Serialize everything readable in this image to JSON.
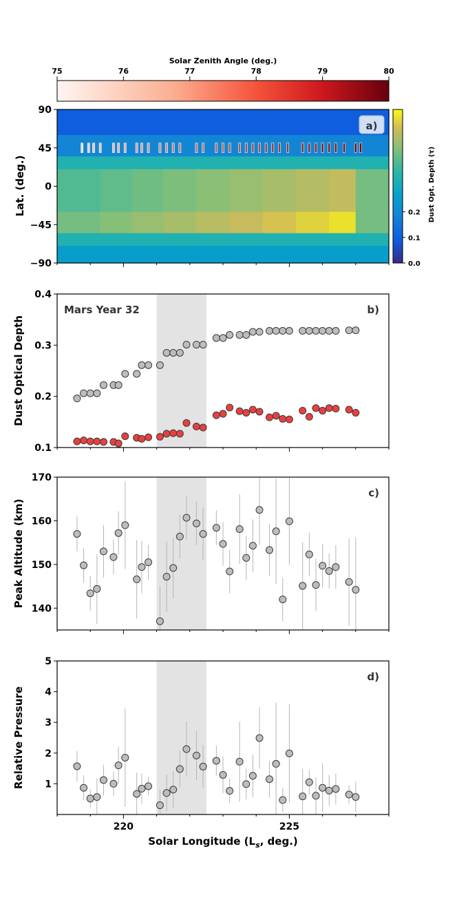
{
  "chart_data": [
    {
      "type": "heatmap",
      "panel_label": "a)",
      "ylabel": "Lat. (deg.)",
      "xlim": [
        218,
        228
      ],
      "ylim": [
        -90,
        90
      ],
      "yticks": [
        "90",
        "45",
        "0",
        "−45",
        "−90"
      ],
      "ytick_values": [
        90,
        45,
        0,
        -45,
        -90
      ],
      "colorbar": {
        "label": "Dust Opt. Depth (τ)",
        "ticks": [
          "0.0",
          "0.1",
          "0.2"
        ],
        "tick_values": [
          0.0,
          0.1,
          0.2
        ],
        "range": [
          0,
          0.6
        ]
      },
      "szaColorbar": {
        "label": "Solar Zenith Angle (deg.)",
        "ticks": [
          "75",
          "76",
          "77",
          "78",
          "79",
          "80"
        ],
        "tick_values": [
          75,
          76,
          77,
          78,
          79,
          80
        ]
      },
      "markerLatitude": 45,
      "markers": [
        {
          "ls": 218.75,
          "sza": 75.6
        },
        {
          "ls": 218.95,
          "sza": 75.8
        },
        {
          "ls": 219.1,
          "sza": 75.9
        },
        {
          "ls": 219.3,
          "sza": 76.0
        },
        {
          "ls": 219.7,
          "sza": 76.2
        },
        {
          "ls": 219.85,
          "sza": 76.3
        },
        {
          "ls": 220.05,
          "sza": 76.4
        },
        {
          "ls": 220.4,
          "sza": 76.6
        },
        {
          "ls": 220.55,
          "sza": 76.7
        },
        {
          "ls": 220.75,
          "sza": 76.8
        },
        {
          "ls": 221.1,
          "sza": 77.0
        },
        {
          "ls": 221.3,
          "sza": 77.1
        },
        {
          "ls": 221.5,
          "sza": 77.2
        },
        {
          "ls": 221.7,
          "sza": 77.3
        },
        {
          "ls": 222.2,
          "sza": 77.5
        },
        {
          "ls": 222.4,
          "sza": 77.6
        },
        {
          "ls": 222.8,
          "sza": 77.8
        },
        {
          "ls": 223.0,
          "sza": 77.9
        },
        {
          "ls": 223.2,
          "sza": 78.0
        },
        {
          "ls": 223.5,
          "sza": 78.1
        },
        {
          "ls": 223.7,
          "sza": 78.2
        },
        {
          "ls": 223.9,
          "sza": 78.3
        },
        {
          "ls": 224.1,
          "sza": 78.4
        },
        {
          "ls": 224.3,
          "sza": 78.5
        },
        {
          "ls": 224.5,
          "sza": 78.6
        },
        {
          "ls": 224.7,
          "sza": 78.7
        },
        {
          "ls": 224.95,
          "sza": 78.8
        },
        {
          "ls": 225.4,
          "sza": 79.0
        },
        {
          "ls": 225.6,
          "sza": 79.1
        },
        {
          "ls": 225.8,
          "sza": 79.2
        },
        {
          "ls": 226.0,
          "sza": 79.3
        },
        {
          "ls": 226.2,
          "sza": 79.4
        },
        {
          "ls": 226.4,
          "sza": 79.5
        },
        {
          "ls": 226.65,
          "sza": 79.6
        },
        {
          "ls": 227.0,
          "sza": 79.8
        },
        {
          "ls": 227.15,
          "sza": 79.9
        }
      ]
    },
    {
      "type": "scatter",
      "panel_label": "b)",
      "annotation": "Mars Year 32",
      "ylabel": "Dust Optical Depth",
      "xlim": [
        218,
        228
      ],
      "ylim": [
        0.1,
        0.4
      ],
      "yticks": [
        "0.1",
        "0.2",
        "0.3",
        "0.4"
      ],
      "ytick_values": [
        0.1,
        0.2,
        0.3,
        0.4
      ],
      "shade": [
        221.0,
        222.5
      ],
      "series": [
        {
          "name": "gray",
          "color": "#bdbdbd",
          "x": [
            218.6,
            218.8,
            219.0,
            219.2,
            219.4,
            219.7,
            219.85,
            220.05,
            220.4,
            220.55,
            220.75,
            221.1,
            221.3,
            221.5,
            221.7,
            221.9,
            222.2,
            222.4,
            222.8,
            223.0,
            223.2,
            223.5,
            223.7,
            223.9,
            224.1,
            224.4,
            224.6,
            224.8,
            225.0,
            225.4,
            225.6,
            225.8,
            226.0,
            226.2,
            226.4,
            226.8,
            227.0
          ],
          "y": [
            0.196,
            0.206,
            0.206,
            0.206,
            0.222,
            0.222,
            0.222,
            0.244,
            0.244,
            0.261,
            0.261,
            0.261,
            0.285,
            0.285,
            0.285,
            0.301,
            0.301,
            0.301,
            0.314,
            0.314,
            0.32,
            0.32,
            0.32,
            0.326,
            0.326,
            0.328,
            0.328,
            0.328,
            0.328,
            0.328,
            0.328,
            0.328,
            0.328,
            0.328,
            0.328,
            0.329,
            0.329
          ]
        },
        {
          "name": "red",
          "color": "#e84040",
          "x": [
            218.6,
            218.8,
            219.0,
            219.2,
            219.4,
            219.7,
            219.85,
            220.05,
            220.4,
            220.55,
            220.75,
            221.1,
            221.3,
            221.5,
            221.7,
            221.9,
            222.2,
            222.4,
            222.8,
            223.0,
            223.2,
            223.5,
            223.7,
            223.9,
            224.1,
            224.4,
            224.6,
            224.8,
            225.0,
            225.4,
            225.6,
            225.8,
            226.0,
            226.2,
            226.4,
            226.8,
            227.0
          ],
          "y": [
            0.112,
            0.114,
            0.112,
            0.112,
            0.111,
            0.111,
            0.108,
            0.122,
            0.119,
            0.117,
            0.12,
            0.121,
            0.127,
            0.128,
            0.127,
            0.148,
            0.141,
            0.139,
            0.163,
            0.166,
            0.178,
            0.171,
            0.168,
            0.174,
            0.17,
            0.159,
            0.162,
            0.156,
            0.155,
            0.172,
            0.16,
            0.177,
            0.172,
            0.177,
            0.176,
            0.174,
            0.168
          ]
        }
      ]
    },
    {
      "type": "scatter",
      "panel_label": "c)",
      "ylabel": "Peak Altitude (km)",
      "xlim": [
        218,
        228
      ],
      "ylim": [
        135,
        170
      ],
      "yticks": [
        "140",
        "150",
        "160",
        "170"
      ],
      "ytick_values": [
        140,
        150,
        160,
        170
      ],
      "shade": [
        221.0,
        222.5
      ],
      "series": [
        {
          "name": "peak_altitude",
          "color": "#bdbdbd",
          "x": [
            218.6,
            218.8,
            219.0,
            219.2,
            219.4,
            219.7,
            219.85,
            220.05,
            220.4,
            220.55,
            220.75,
            221.1,
            221.3,
            221.5,
            221.7,
            221.9,
            222.2,
            222.4,
            222.8,
            223.0,
            223.2,
            223.5,
            223.7,
            223.9,
            224.1,
            224.4,
            224.6,
            224.8,
            225.0,
            225.4,
            225.6,
            225.8,
            226.0,
            226.2,
            226.4,
            226.8,
            227.0
          ],
          "y": [
            157.0,
            149.8,
            143.4,
            144.4,
            153.0,
            151.7,
            157.2,
            159.0,
            146.6,
            149.4,
            150.5,
            137.0,
            147.2,
            149.2,
            156.4,
            160.7,
            159.4,
            157.0,
            158.4,
            154.7,
            148.4,
            158.1,
            151.5,
            154.3,
            162.5,
            153.3,
            157.6,
            142.0,
            159.9,
            145.1,
            152.3,
            145.3,
            149.7,
            148.5,
            149.4,
            146.0,
            144.2
          ],
          "err": [
            4,
            4,
            4,
            8,
            6,
            4,
            5,
            10,
            9,
            6,
            4,
            8,
            8,
            7,
            5,
            5,
            5,
            6,
            4,
            5,
            5,
            8,
            5,
            6,
            8,
            6,
            12,
            5,
            10,
            10,
            5,
            6,
            5,
            4,
            5,
            10,
            12
          ]
        }
      ]
    },
    {
      "type": "scatter",
      "panel_label": "d)",
      "ylabel": "Relative Pressure",
      "xlabel": "Solar Longitude (Ls, deg.)",
      "xlim": [
        218,
        228
      ],
      "ylim": [
        0,
        5
      ],
      "yticks": [
        "1",
        "2",
        "3",
        "4",
        "5"
      ],
      "ytick_values": [
        1,
        2,
        3,
        4,
        5
      ],
      "xticks": [
        "220",
        "225"
      ],
      "xtick_values": [
        220,
        225
      ],
      "shade": [
        221.0,
        222.5
      ],
      "series": [
        {
          "name": "relative_pressure",
          "color": "#bdbdbd",
          "x": [
            218.6,
            218.8,
            219.0,
            219.2,
            219.4,
            219.7,
            219.85,
            220.05,
            220.4,
            220.55,
            220.75,
            221.1,
            221.3,
            221.5,
            221.7,
            221.9,
            222.2,
            222.4,
            222.8,
            223.0,
            223.2,
            223.5,
            223.7,
            223.9,
            224.1,
            224.4,
            224.6,
            224.8,
            225.0,
            225.4,
            225.6,
            225.8,
            226.0,
            226.2,
            226.4,
            226.8,
            227.0
          ],
          "y": [
            1.57,
            0.87,
            0.52,
            0.57,
            1.12,
            1.0,
            1.6,
            1.85,
            0.67,
            0.84,
            0.92,
            0.3,
            0.7,
            0.81,
            1.48,
            2.13,
            1.92,
            1.56,
            1.75,
            1.29,
            0.77,
            1.72,
            0.99,
            1.26,
            2.49,
            1.15,
            1.65,
            0.47,
            1.99,
            0.59,
            1.05,
            0.61,
            0.87,
            0.78,
            0.83,
            0.65,
            0.57
          ],
          "err": [
            0.5,
            0.4,
            0.3,
            0.6,
            0.5,
            0.4,
            0.6,
            1.6,
            0.7,
            0.5,
            0.3,
            0.5,
            0.6,
            0.6,
            0.6,
            0.9,
            0.8,
            0.7,
            0.5,
            0.6,
            0.4,
            1.3,
            0.5,
            0.7,
            1.0,
            0.6,
            2.0,
            0.4,
            1.6,
            0.9,
            0.4,
            0.6,
            0.8,
            0.5,
            0.5,
            0.3,
            0.5
          ]
        }
      ]
    }
  ]
}
